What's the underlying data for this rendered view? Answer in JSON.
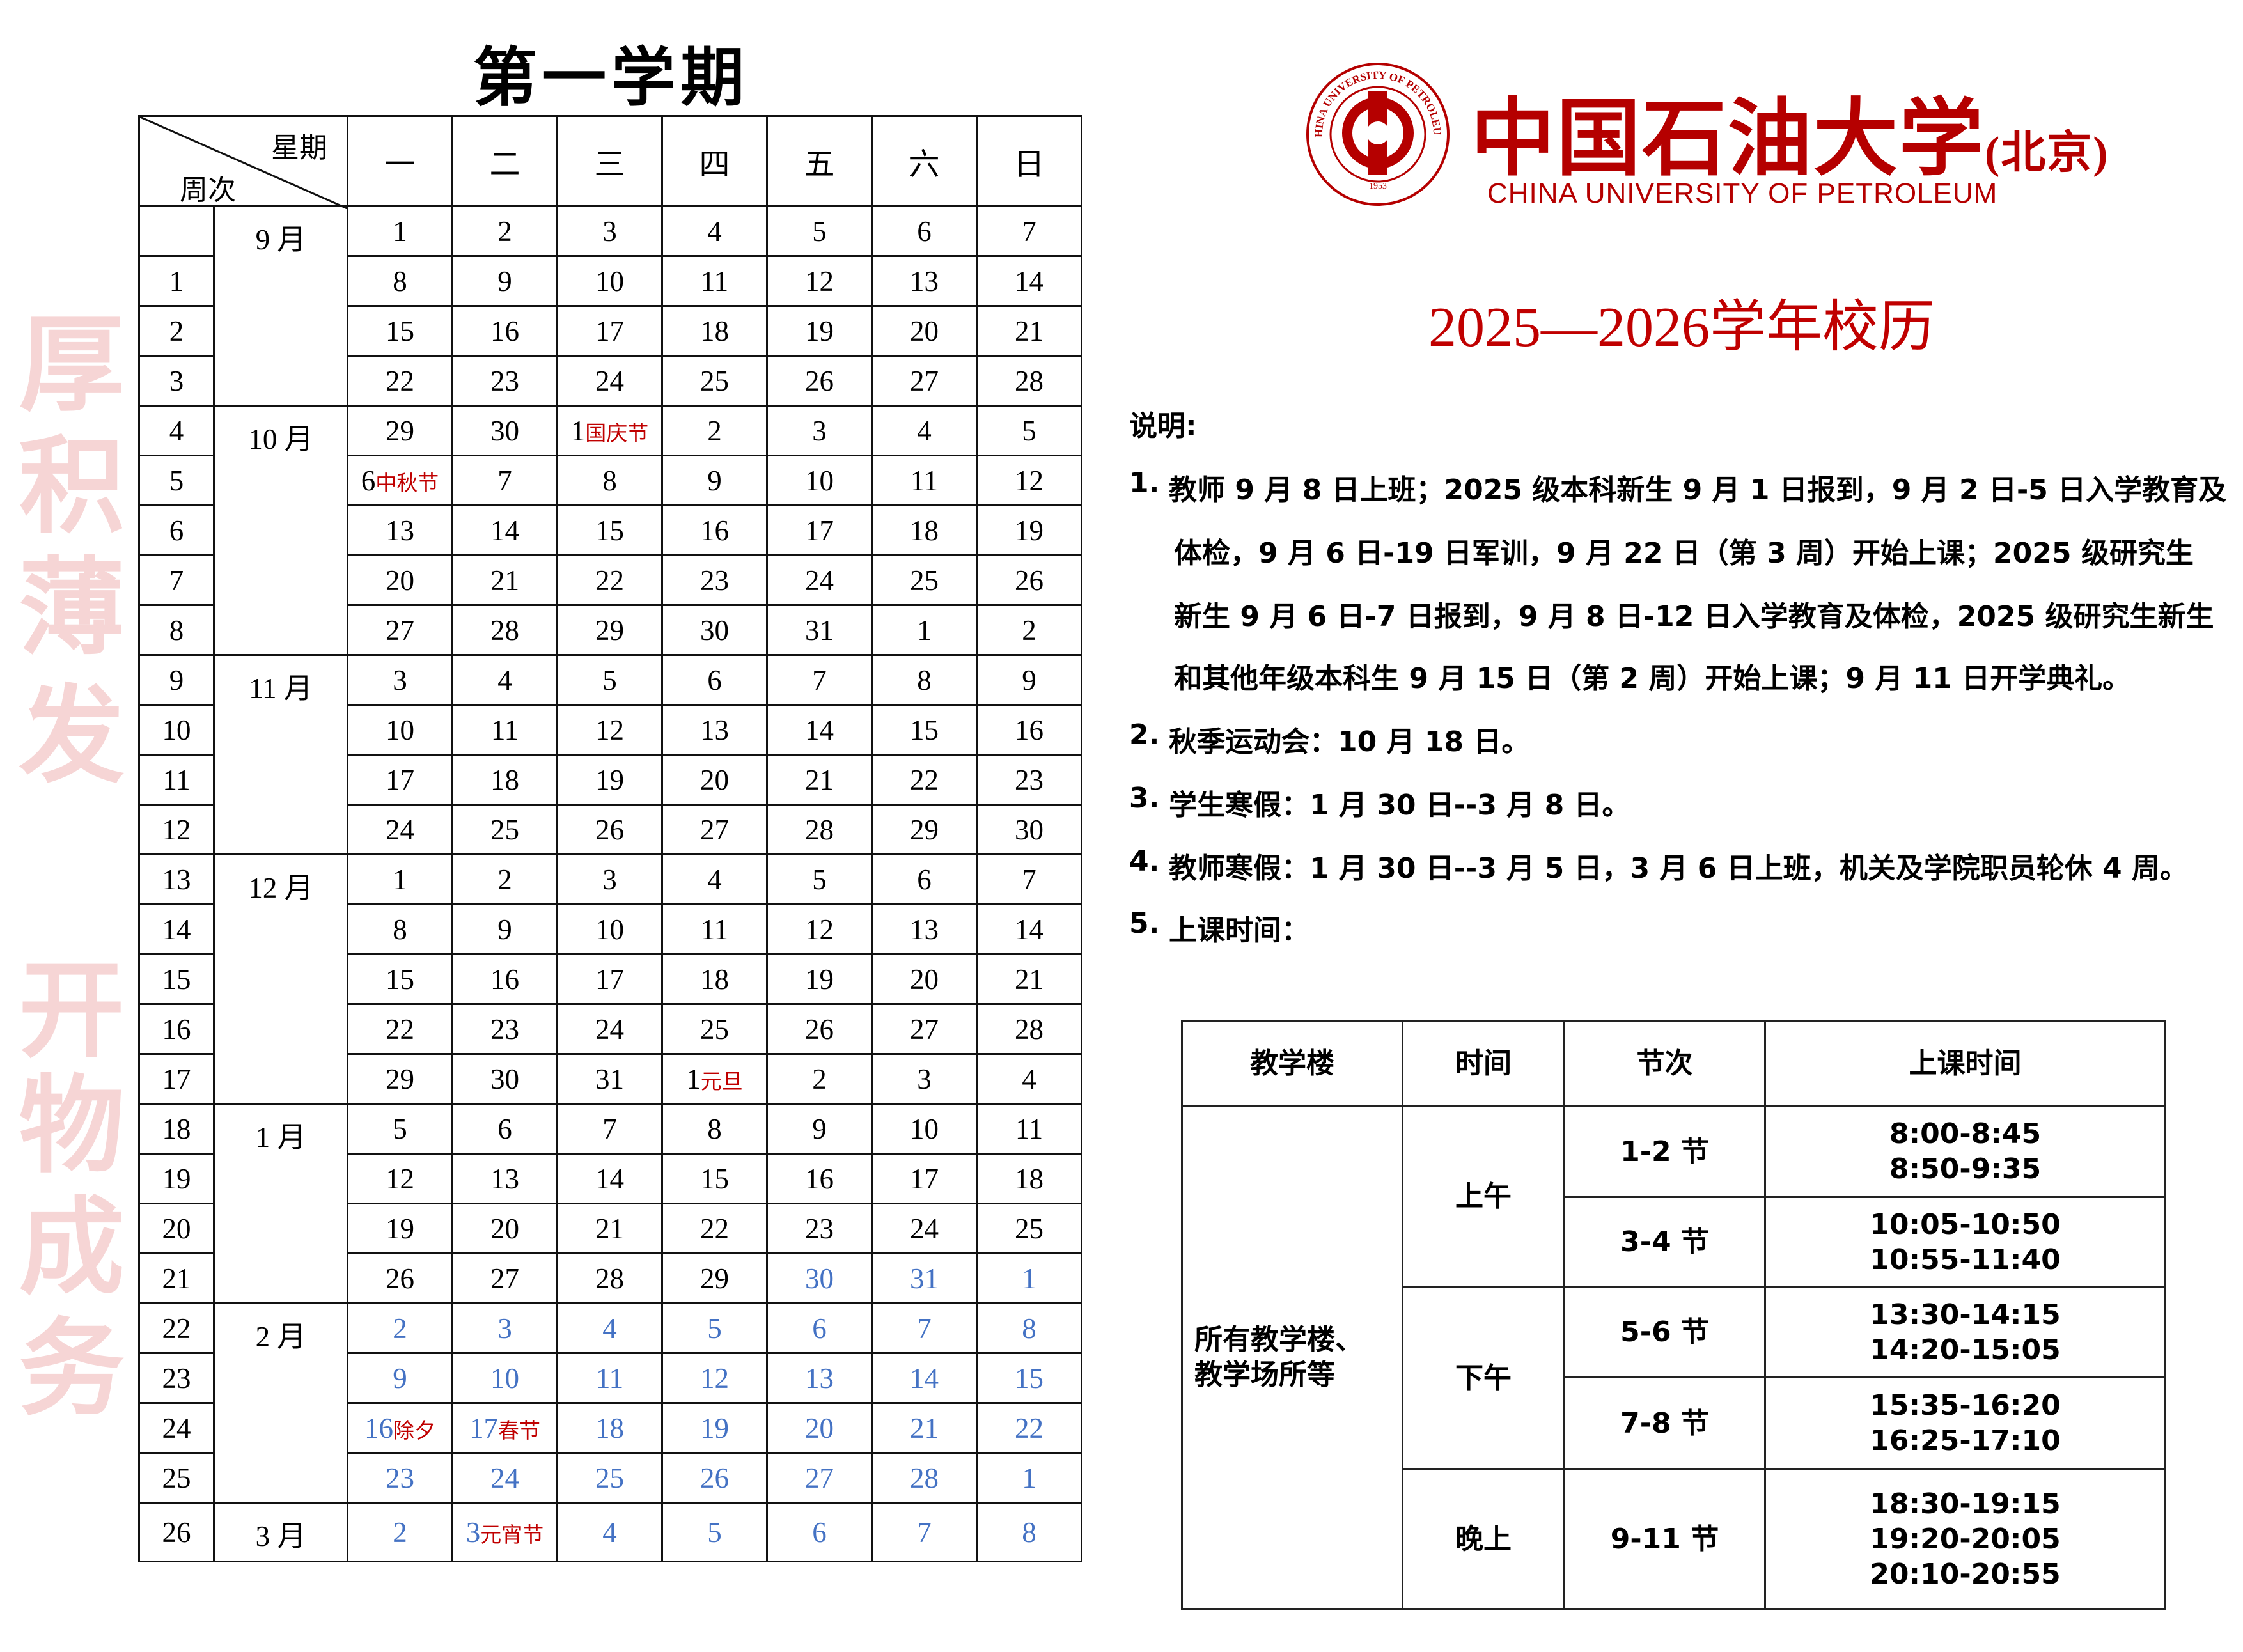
{
  "semester_title": "第一学期",
  "watermark": [
    "厚",
    "积",
    "薄",
    "发",
    "开",
    "物",
    "成",
    "务"
  ],
  "calendar": {
    "corner_top": "星期",
    "corner_bottom": "周次",
    "weekdays": [
      "一",
      "二",
      "三",
      "四",
      "五",
      "六",
      "日"
    ],
    "colors": {
      "normal": "#000000",
      "vacation": "#4472c4",
      "holiday": "#c00000"
    },
    "months": [
      {
        "label": "9 月",
        "rows": 4
      },
      {
        "label": "10 月",
        "rows": 5
      },
      {
        "label": "11 月",
        "rows": 4
      },
      {
        "label": "12 月",
        "rows": 5
      },
      {
        "label": "1 月",
        "rows": 4
      },
      {
        "label": "2 月",
        "rows": 4
      },
      {
        "label": "3 月",
        "rows": 1
      }
    ],
    "rows": [
      {
        "week": "",
        "days": [
          "1",
          "2",
          "3",
          "4",
          "5",
          "6",
          "7"
        ]
      },
      {
        "week": "1",
        "days": [
          "8",
          "9",
          "10",
          "11",
          "12",
          "13",
          "14"
        ]
      },
      {
        "week": "2",
        "days": [
          "15",
          "16",
          "17",
          "18",
          "19",
          "20",
          "21"
        ]
      },
      {
        "week": "3",
        "days": [
          "22",
          "23",
          "24",
          "25",
          "26",
          "27",
          "28"
        ]
      },
      {
        "week": "4",
        "days": [
          "29",
          "30",
          "1",
          "2",
          "3",
          "4",
          "5"
        ],
        "notes": {
          "2": "国庆节"
        }
      },
      {
        "week": "5",
        "days": [
          "6",
          "7",
          "8",
          "9",
          "10",
          "11",
          "12"
        ],
        "notes": {
          "0": "中秋节"
        }
      },
      {
        "week": "6",
        "days": [
          "13",
          "14",
          "15",
          "16",
          "17",
          "18",
          "19"
        ]
      },
      {
        "week": "7",
        "days": [
          "20",
          "21",
          "22",
          "23",
          "24",
          "25",
          "26"
        ]
      },
      {
        "week": "8",
        "days": [
          "27",
          "28",
          "29",
          "30",
          "31",
          "1",
          "2"
        ]
      },
      {
        "week": "9",
        "days": [
          "3",
          "4",
          "5",
          "6",
          "7",
          "8",
          "9"
        ]
      },
      {
        "week": "10",
        "days": [
          "10",
          "11",
          "12",
          "13",
          "14",
          "15",
          "16"
        ]
      },
      {
        "week": "11",
        "days": [
          "17",
          "18",
          "19",
          "20",
          "21",
          "22",
          "23"
        ]
      },
      {
        "week": "12",
        "days": [
          "24",
          "25",
          "26",
          "27",
          "28",
          "29",
          "30"
        ]
      },
      {
        "week": "13",
        "days": [
          "1",
          "2",
          "3",
          "4",
          "5",
          "6",
          "7"
        ]
      },
      {
        "week": "14",
        "days": [
          "8",
          "9",
          "10",
          "11",
          "12",
          "13",
          "14"
        ]
      },
      {
        "week": "15",
        "days": [
          "15",
          "16",
          "17",
          "18",
          "19",
          "20",
          "21"
        ]
      },
      {
        "week": "16",
        "days": [
          "22",
          "23",
          "24",
          "25",
          "26",
          "27",
          "28"
        ]
      },
      {
        "week": "17",
        "days": [
          "29",
          "30",
          "31",
          "1",
          "2",
          "3",
          "4"
        ],
        "notes": {
          "3": "元旦"
        }
      },
      {
        "week": "18",
        "days": [
          "5",
          "6",
          "7",
          "8",
          "9",
          "10",
          "11"
        ]
      },
      {
        "week": "19",
        "days": [
          "12",
          "13",
          "14",
          "15",
          "16",
          "17",
          "18"
        ]
      },
      {
        "week": "20",
        "days": [
          "19",
          "20",
          "21",
          "22",
          "23",
          "24",
          "25"
        ]
      },
      {
        "week": "21",
        "days": [
          "26",
          "27",
          "28",
          "29",
          "30",
          "31",
          "1"
        ],
        "vacation_from": 4
      },
      {
        "week": "22",
        "days": [
          "2",
          "3",
          "4",
          "5",
          "6",
          "7",
          "8"
        ],
        "vacation_from": 0
      },
      {
        "week": "23",
        "days": [
          "9",
          "10",
          "11",
          "12",
          "13",
          "14",
          "15"
        ],
        "vacation_from": 0
      },
      {
        "week": "24",
        "days": [
          "16",
          "17",
          "18",
          "19",
          "20",
          "21",
          "22"
        ],
        "vacation_from": 0,
        "notes": {
          "0": "除夕",
          "1": "春节"
        }
      },
      {
        "week": "25",
        "days": [
          "23",
          "24",
          "25",
          "26",
          "27",
          "28",
          "1"
        ],
        "vacation_from": 0
      },
      {
        "week": "26",
        "days": [
          "2",
          "3",
          "4",
          "5",
          "6",
          "7",
          "8"
        ],
        "vacation_from": 0,
        "notes": {
          "1": "元宵节"
        }
      }
    ]
  },
  "logo": {
    "seal_text": "CHINA UNIVERSITY OF PETROLEUM",
    "seal_year": "1953",
    "name_cn": "中国石油大学",
    "name_cn_suffix": "(北京)",
    "name_en": "CHINA UNIVERSITY OF PETROLEUM",
    "color": "#b50000"
  },
  "year_title": "2025—2026学年校历",
  "notes": {
    "heading": "说明:",
    "items": [
      {
        "num": "1.",
        "lines": [
          "教师 9 月 8 日上班；2025 级本科新生 9 月 1 日报到，9 月 2 日-5 日入学教育及",
          "体检，9 月 6 日-19 日军训，9 月 22 日（第 3 周）开始上课；2025 级研究生",
          "新生 9 月 6 日-7 日报到，9 月 8 日-12 日入学教育及体检，2025 级研究生新生",
          "和其他年级本科生 9 月 15 日（第 2 周）开始上课；9 月 11 日开学典礼。"
        ]
      },
      {
        "num": "2.",
        "lines": [
          "秋季运动会：10 月 18 日。"
        ]
      },
      {
        "num": "3.",
        "lines": [
          "学生寒假：1 月 30 日--3 月 8 日。"
        ]
      },
      {
        "num": "4.",
        "lines": [
          "教师寒假：1 月 30 日--3 月 5 日，3 月 6 日上班，机关及学院职员轮休 4 周。"
        ]
      },
      {
        "num": "5.",
        "lines": [
          "上课时间："
        ]
      }
    ]
  },
  "schedule": {
    "headers": [
      "教学楼",
      "时间",
      "节次",
      "上课时间"
    ],
    "building_lines": [
      "所有教学楼、",
      "教学场所等"
    ],
    "periods": [
      {
        "time": "上午",
        "slots": [
          {
            "section": "1-2 节",
            "times": [
              "8:00-8:45",
              "8:50-9:35"
            ]
          },
          {
            "section": "3-4 节",
            "times": [
              "10:05-10:50",
              "10:55-11:40"
            ]
          }
        ]
      },
      {
        "time": "下午",
        "slots": [
          {
            "section": "5-6 节",
            "times": [
              "13:30-14:15",
              "14:20-15:05"
            ]
          },
          {
            "section": "7-8 节",
            "times": [
              "15:35-16:20",
              "16:25-17:10"
            ]
          }
        ]
      },
      {
        "time": "晚上",
        "slots": [
          {
            "section": "9-11 节",
            "times": [
              "18:30-19:15",
              "19:20-20:05",
              "20:10-20:55"
            ]
          }
        ]
      }
    ]
  }
}
